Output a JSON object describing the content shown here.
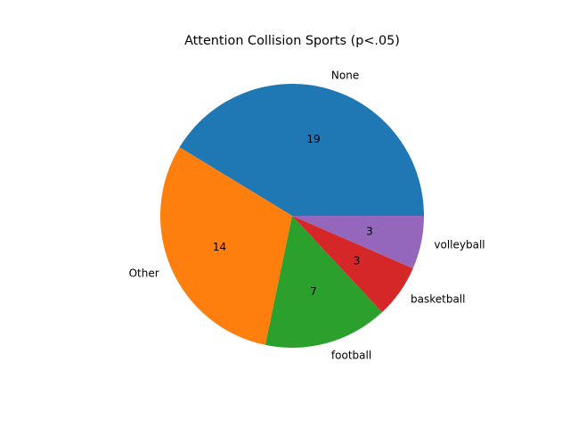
{
  "chart_data": {
    "type": "pie",
    "title": "Attention Collision Sports (p<.05)",
    "slices": [
      {
        "label": "None",
        "value": 19,
        "color": "#1f77b4"
      },
      {
        "label": "Other",
        "value": 14,
        "color": "#ff7f0e"
      },
      {
        "label": "football",
        "value": 7,
        "color": "#2ca02c"
      },
      {
        "label": "basketball",
        "value": 3,
        "color": "#d62728"
      },
      {
        "label": "volleyball",
        "value": 3,
        "color": "#9467bd"
      }
    ],
    "start_angle_deg": 0,
    "direction": "counterclockwise",
    "legend": false
  }
}
